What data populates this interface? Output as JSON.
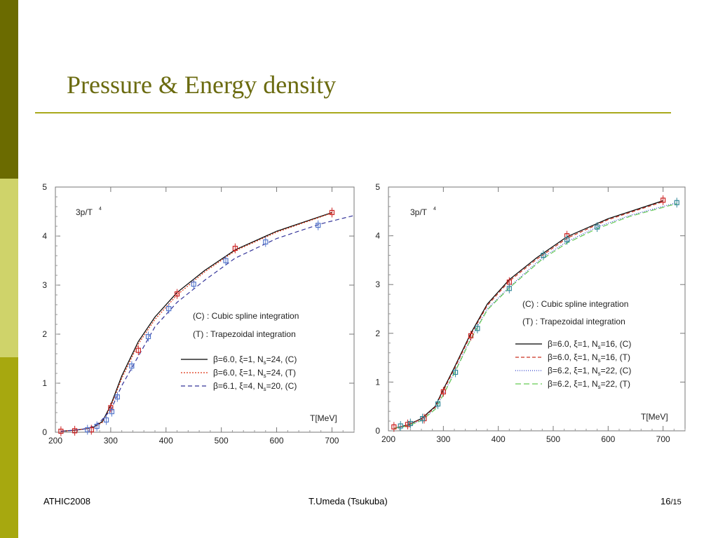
{
  "slide": {
    "title": "Pressure  &  Energy density",
    "footer_left": "ATHIC2008",
    "footer_center": "T.Umeda (Tsukuba)",
    "page_number": "16",
    "page_total": "/15",
    "colors": {
      "band_dark": "#6b6b00",
      "band_light": "#cfd36a",
      "band_mid": "#a7a80f",
      "title": "#6b6b10",
      "rule": "#a9a91c"
    }
  },
  "chart_data": [
    {
      "type": "line",
      "ylabel_text": "3p/T",
      "ylabel_sup": "4",
      "xlabel": "T[MeV]",
      "xlim": [
        200,
        740
      ],
      "ylim": [
        0,
        5
      ],
      "xticks": [
        200,
        300,
        400,
        500,
        600,
        700
      ],
      "yticks": [
        0,
        1,
        2,
        3,
        4,
        5
      ],
      "notes": [
        "(C) : Cubic spline integration",
        "(T) : Trapezoidal integration"
      ],
      "legend_position": "center-right",
      "series": [
        {
          "legend_main": "β=6.0, ξ=1, N",
          "legend_sub": "s",
          "legend_tail": "=24, (C)",
          "color": "#000000",
          "dash": "none",
          "x": [
            210,
            235,
            255,
            270,
            285,
            300,
            320,
            350,
            380,
            420,
            470,
            525,
            600,
            700
          ],
          "y": [
            0.02,
            0.04,
            0.07,
            0.11,
            0.22,
            0.55,
            1.15,
            1.85,
            2.35,
            2.85,
            3.3,
            3.72,
            4.1,
            4.48
          ],
          "points_x": [
            525,
            700
          ],
          "points_y": [
            3.75,
            4.48
          ],
          "point_color": "#cc2222"
        },
        {
          "legend_main": "β=6.0, ξ=1, N",
          "legend_sub": "s",
          "legend_tail": "=24, (T)",
          "color": "#dd3311",
          "dash": "2,2",
          "x": [
            210,
            235,
            255,
            270,
            285,
            300,
            320,
            350,
            380,
            420,
            470,
            525,
            600,
            700
          ],
          "y": [
            0.02,
            0.04,
            0.07,
            0.1,
            0.2,
            0.52,
            1.1,
            1.8,
            2.3,
            2.8,
            3.27,
            3.7,
            4.08,
            4.47
          ],
          "points_x": [
            210,
            235,
            265,
            300,
            350,
            420
          ],
          "points_y": [
            0.02,
            0.03,
            0.05,
            0.5,
            1.67,
            2.82
          ],
          "point_color": "#cc2222"
        },
        {
          "legend_main": "β=6.1, ξ=4, N",
          "legend_sub": "s",
          "legend_tail": "=20, (C)",
          "color": "#333399",
          "dash": "6,4",
          "x": [
            210,
            240,
            260,
            280,
            300,
            320,
            350,
            380,
            420,
            470,
            525,
            600,
            680,
            740
          ],
          "y": [
            0.02,
            0.05,
            0.08,
            0.2,
            0.45,
            0.95,
            1.55,
            2.15,
            2.65,
            3.1,
            3.55,
            3.95,
            4.25,
            4.42
          ],
          "points_x": [
            258,
            275,
            292,
            302,
            312,
            338,
            368,
            405,
            450,
            508,
            580,
            675
          ],
          "points_y": [
            0.05,
            0.12,
            0.25,
            0.42,
            0.72,
            1.35,
            1.95,
            2.52,
            3.02,
            3.5,
            3.88,
            4.22
          ],
          "point_color": "#5577cc"
        }
      ]
    },
    {
      "type": "line",
      "ylabel_text": "3p/T",
      "ylabel_sup": "4",
      "xlabel": "T[MeV]",
      "xlim": [
        200,
        740
      ],
      "ylim": [
        0,
        5
      ],
      "xticks": [
        200,
        300,
        400,
        500,
        600,
        700
      ],
      "yticks": [
        0,
        1,
        2,
        3,
        4,
        5
      ],
      "notes": [
        "(C) : Cubic spline integration",
        "(T) : Trapezoidal integration"
      ],
      "legend_position": "center-right",
      "series": [
        {
          "legend_main": "β=6.0, ξ=1, N",
          "legend_sub": "s",
          "legend_tail": "=16, (C)",
          "color": "#000000",
          "dash": "none",
          "x": [
            210,
            235,
            260,
            285,
            300,
            320,
            350,
            380,
            420,
            470,
            525,
            600,
            700
          ],
          "y": [
            0.05,
            0.12,
            0.25,
            0.5,
            0.85,
            1.3,
            2.0,
            2.6,
            3.1,
            3.55,
            3.98,
            4.35,
            4.72
          ],
          "points_x": [
            210,
            235,
            265,
            300,
            350,
            420,
            525,
            700
          ],
          "points_y": [
            0.08,
            0.13,
            0.25,
            0.8,
            1.95,
            3.05,
            4.0,
            4.73
          ],
          "point_color": "#cc2222"
        },
        {
          "legend_main": "β=6.0, ξ=1, N",
          "legend_sub": "s",
          "legend_tail": "=16, (T)",
          "color": "#cc3322",
          "dash": "5,3",
          "x": [
            210,
            235,
            260,
            285,
            300,
            320,
            350,
            380,
            420,
            470,
            525,
            600,
            700
          ],
          "y": [
            0.05,
            0.12,
            0.24,
            0.48,
            0.82,
            1.27,
            1.97,
            2.57,
            3.07,
            3.52,
            3.95,
            4.33,
            4.7
          ],
          "points_x": [],
          "points_y": [],
          "point_color": "#cc2222"
        },
        {
          "legend_main": "β=6.2, ξ=1, N",
          "legend_sub": "s",
          "legend_tail": "=22, (C)",
          "color": "#3344cc",
          "dash": "1,2",
          "x": [
            210,
            235,
            260,
            285,
            300,
            320,
            350,
            380,
            420,
            480,
            525,
            580,
            640,
            725
          ],
          "y": [
            0.05,
            0.1,
            0.22,
            0.45,
            0.75,
            1.2,
            1.9,
            2.5,
            2.95,
            3.55,
            3.88,
            4.18,
            4.42,
            4.68
          ],
          "points_x": [],
          "points_y": [],
          "point_color": "#3355cc"
        },
        {
          "legend_main": "β=6.2, ξ=1, N",
          "legend_sub": "s",
          "legend_tail": "=22, (T)",
          "color": "#66cc55",
          "dash": "8,4",
          "x": [
            210,
            235,
            260,
            285,
            300,
            320,
            350,
            380,
            420,
            480,
            525,
            580,
            640,
            725
          ],
          "y": [
            0.05,
            0.1,
            0.21,
            0.44,
            0.74,
            1.18,
            1.88,
            2.48,
            2.93,
            3.52,
            3.85,
            4.15,
            4.4,
            4.66
          ],
          "points_x": [
            222,
            240,
            262,
            290,
            322,
            362,
            420,
            482,
            525,
            580,
            725
          ],
          "points_y": [
            0.1,
            0.15,
            0.25,
            0.55,
            1.2,
            2.1,
            2.92,
            3.6,
            3.92,
            4.18,
            4.68
          ],
          "point_color": "#338899"
        }
      ]
    }
  ]
}
